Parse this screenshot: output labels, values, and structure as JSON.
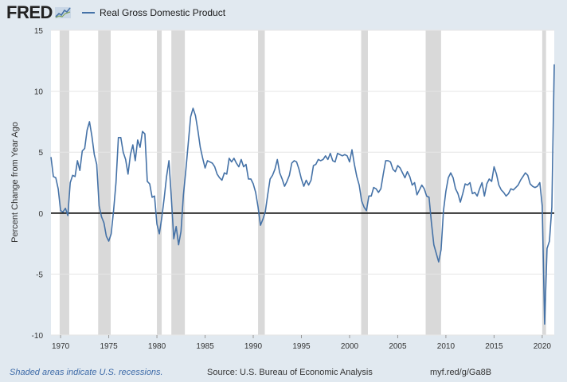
{
  "header": {
    "logo_text": "FRED",
    "legend_label": "Real Gross Domestic Product"
  },
  "colors": {
    "series": "#4572a7",
    "recession": "#d9d9d9",
    "background": "#e1e9f0",
    "plot": "#ffffff",
    "zero_line": "#000000"
  },
  "footer": {
    "note": "Shaded areas indicate U.S. recessions.",
    "source": "Source: U.S. Bureau of Economic Analysis",
    "url": "myf.red/g/Ga8B"
  },
  "chart_data": {
    "type": "line",
    "title": "Real Gross Domestic Product",
    "xlabel": "",
    "ylabel": "Percent Change from Year Ago",
    "xlim": [
      1969.0,
      2021.25
    ],
    "ylim": [
      -10,
      15
    ],
    "yticks": [
      -10,
      -5,
      0,
      5,
      10,
      15
    ],
    "xticks": [
      1970,
      1975,
      1980,
      1985,
      1990,
      1995,
      2000,
      2005,
      2010,
      2015,
      2020
    ],
    "recessions": [
      [
        1969.9,
        1970.9
      ],
      [
        1973.9,
        1975.2
      ],
      [
        1980.0,
        1980.5
      ],
      [
        1981.5,
        1982.9
      ],
      [
        1990.5,
        1991.2
      ],
      [
        2001.2,
        2001.9
      ],
      [
        2007.9,
        2009.5
      ],
      [
        2020.0,
        2020.4
      ]
    ],
    "series": [
      {
        "name": "Real Gross Domestic Product",
        "points": [
          [
            1969.0,
            4.6
          ],
          [
            1969.25,
            3.0
          ],
          [
            1969.5,
            2.9
          ],
          [
            1969.75,
            2.0
          ],
          [
            1970.0,
            0.2
          ],
          [
            1970.25,
            0.1
          ],
          [
            1970.5,
            0.4
          ],
          [
            1970.75,
            -0.2
          ],
          [
            1971.0,
            2.5
          ],
          [
            1971.25,
            3.1
          ],
          [
            1971.5,
            3.0
          ],
          [
            1971.75,
            4.3
          ],
          [
            1972.0,
            3.5
          ],
          [
            1972.25,
            5.1
          ],
          [
            1972.5,
            5.3
          ],
          [
            1972.75,
            6.8
          ],
          [
            1973.0,
            7.5
          ],
          [
            1973.25,
            6.3
          ],
          [
            1973.5,
            4.8
          ],
          [
            1973.75,
            4.0
          ],
          [
            1974.0,
            0.6
          ],
          [
            1974.25,
            -0.3
          ],
          [
            1974.5,
            -0.8
          ],
          [
            1974.75,
            -1.9
          ],
          [
            1975.0,
            -2.3
          ],
          [
            1975.25,
            -1.7
          ],
          [
            1975.5,
            0.2
          ],
          [
            1975.75,
            2.5
          ],
          [
            1976.0,
            6.2
          ],
          [
            1976.25,
            6.2
          ],
          [
            1976.5,
            5.0
          ],
          [
            1976.75,
            4.4
          ],
          [
            1977.0,
            3.2
          ],
          [
            1977.25,
            4.8
          ],
          [
            1977.5,
            5.6
          ],
          [
            1977.75,
            4.3
          ],
          [
            1978.0,
            6.0
          ],
          [
            1978.25,
            5.4
          ],
          [
            1978.5,
            6.7
          ],
          [
            1978.75,
            6.5
          ],
          [
            1979.0,
            2.6
          ],
          [
            1979.25,
            2.4
          ],
          [
            1979.5,
            1.3
          ],
          [
            1979.75,
            1.4
          ],
          [
            1980.0,
            -0.9
          ],
          [
            1980.25,
            -1.7
          ],
          [
            1980.5,
            -0.4
          ],
          [
            1980.75,
            1.2
          ],
          [
            1981.0,
            3.0
          ],
          [
            1981.25,
            4.3
          ],
          [
            1981.5,
            1.2
          ],
          [
            1981.75,
            -2.1
          ],
          [
            1982.0,
            -1.1
          ],
          [
            1982.25,
            -2.6
          ],
          [
            1982.5,
            -1.5
          ],
          [
            1982.75,
            1.5
          ],
          [
            1983.0,
            3.5
          ],
          [
            1983.25,
            5.7
          ],
          [
            1983.5,
            7.9
          ],
          [
            1983.75,
            8.6
          ],
          [
            1984.0,
            8.0
          ],
          [
            1984.25,
            6.8
          ],
          [
            1984.5,
            5.4
          ],
          [
            1984.75,
            4.5
          ],
          [
            1985.0,
            3.7
          ],
          [
            1985.25,
            4.3
          ],
          [
            1985.5,
            4.2
          ],
          [
            1985.75,
            4.1
          ],
          [
            1986.0,
            3.8
          ],
          [
            1986.25,
            3.2
          ],
          [
            1986.5,
            2.9
          ],
          [
            1986.75,
            2.7
          ],
          [
            1987.0,
            3.3
          ],
          [
            1987.25,
            3.2
          ],
          [
            1987.5,
            4.5
          ],
          [
            1987.75,
            4.2
          ],
          [
            1988.0,
            4.5
          ],
          [
            1988.25,
            4.1
          ],
          [
            1988.5,
            3.8
          ],
          [
            1988.75,
            4.4
          ],
          [
            1989.0,
            3.8
          ],
          [
            1989.25,
            4.0
          ],
          [
            1989.5,
            2.8
          ],
          [
            1989.75,
            2.8
          ],
          [
            1990.0,
            2.4
          ],
          [
            1990.25,
            1.7
          ],
          [
            1990.5,
            0.5
          ],
          [
            1990.75,
            -1.0
          ],
          [
            1991.0,
            -0.5
          ],
          [
            1991.25,
            0.1
          ],
          [
            1991.5,
            1.5
          ],
          [
            1991.75,
            2.8
          ],
          [
            1992.0,
            3.1
          ],
          [
            1992.25,
            3.6
          ],
          [
            1992.5,
            4.4
          ],
          [
            1992.75,
            3.3
          ],
          [
            1993.0,
            2.8
          ],
          [
            1993.25,
            2.2
          ],
          [
            1993.5,
            2.6
          ],
          [
            1993.75,
            3.1
          ],
          [
            1994.0,
            4.1
          ],
          [
            1994.25,
            4.3
          ],
          [
            1994.5,
            4.2
          ],
          [
            1994.75,
            3.6
          ],
          [
            1995.0,
            2.8
          ],
          [
            1995.25,
            2.2
          ],
          [
            1995.5,
            2.7
          ],
          [
            1995.75,
            2.3
          ],
          [
            1996.0,
            2.7
          ],
          [
            1996.25,
            3.9
          ],
          [
            1996.5,
            4.0
          ],
          [
            1996.75,
            4.4
          ],
          [
            1997.0,
            4.3
          ],
          [
            1997.25,
            4.4
          ],
          [
            1997.5,
            4.7
          ],
          [
            1997.75,
            4.4
          ],
          [
            1998.0,
            4.9
          ],
          [
            1998.25,
            4.3
          ],
          [
            1998.5,
            4.2
          ],
          [
            1998.75,
            4.9
          ],
          [
            1999.0,
            4.8
          ],
          [
            1999.25,
            4.7
          ],
          [
            1999.5,
            4.8
          ],
          [
            1999.75,
            4.7
          ],
          [
            2000.0,
            4.2
          ],
          [
            2000.25,
            5.2
          ],
          [
            2000.5,
            4.0
          ],
          [
            2000.75,
            3.0
          ],
          [
            2001.0,
            2.3
          ],
          [
            2001.25,
            1.0
          ],
          [
            2001.5,
            0.5
          ],
          [
            2001.75,
            0.2
          ],
          [
            2002.0,
            1.4
          ],
          [
            2002.25,
            1.4
          ],
          [
            2002.5,
            2.1
          ],
          [
            2002.75,
            2.0
          ],
          [
            2003.0,
            1.7
          ],
          [
            2003.25,
            2.0
          ],
          [
            2003.5,
            3.2
          ],
          [
            2003.75,
            4.3
          ],
          [
            2004.0,
            4.3
          ],
          [
            2004.25,
            4.2
          ],
          [
            2004.5,
            3.6
          ],
          [
            2004.75,
            3.4
          ],
          [
            2005.0,
            3.9
          ],
          [
            2005.25,
            3.7
          ],
          [
            2005.5,
            3.3
          ],
          [
            2005.75,
            2.9
          ],
          [
            2006.0,
            3.4
          ],
          [
            2006.25,
            3.0
          ],
          [
            2006.5,
            2.3
          ],
          [
            2006.75,
            2.5
          ],
          [
            2007.0,
            1.5
          ],
          [
            2007.25,
            1.9
          ],
          [
            2007.5,
            2.3
          ],
          [
            2007.75,
            2.0
          ],
          [
            2008.0,
            1.4
          ],
          [
            2008.25,
            1.3
          ],
          [
            2008.5,
            -0.8
          ],
          [
            2008.75,
            -2.6
          ],
          [
            2009.0,
            -3.3
          ],
          [
            2009.25,
            -4.0
          ],
          [
            2009.5,
            -3.0
          ],
          [
            2009.75,
            0.2
          ],
          [
            2010.0,
            1.8
          ],
          [
            2010.25,
            2.9
          ],
          [
            2010.5,
            3.3
          ],
          [
            2010.75,
            2.9
          ],
          [
            2011.0,
            2.0
          ],
          [
            2011.25,
            1.6
          ],
          [
            2011.5,
            0.9
          ],
          [
            2011.75,
            1.6
          ],
          [
            2012.0,
            2.4
          ],
          [
            2012.25,
            2.3
          ],
          [
            2012.5,
            2.5
          ],
          [
            2012.75,
            1.6
          ],
          [
            2013.0,
            1.7
          ],
          [
            2013.25,
            1.4
          ],
          [
            2013.5,
            2.0
          ],
          [
            2013.75,
            2.5
          ],
          [
            2014.0,
            1.4
          ],
          [
            2014.25,
            2.4
          ],
          [
            2014.5,
            2.8
          ],
          [
            2014.75,
            2.6
          ],
          [
            2015.0,
            3.8
          ],
          [
            2015.25,
            3.2
          ],
          [
            2015.5,
            2.3
          ],
          [
            2015.75,
            1.9
          ],
          [
            2016.0,
            1.7
          ],
          [
            2016.25,
            1.4
          ],
          [
            2016.5,
            1.6
          ],
          [
            2016.75,
            2.0
          ],
          [
            2017.0,
            1.9
          ],
          [
            2017.25,
            2.1
          ],
          [
            2017.5,
            2.3
          ],
          [
            2017.75,
            2.7
          ],
          [
            2018.0,
            3.0
          ],
          [
            2018.25,
            3.3
          ],
          [
            2018.5,
            3.1
          ],
          [
            2018.75,
            2.4
          ],
          [
            2019.0,
            2.2
          ],
          [
            2019.25,
            2.1
          ],
          [
            2019.5,
            2.2
          ],
          [
            2019.75,
            2.5
          ],
          [
            2020.0,
            0.6
          ],
          [
            2020.25,
            -9.1
          ],
          [
            2020.5,
            -2.9
          ],
          [
            2020.75,
            -2.3
          ],
          [
            2021.0,
            0.5
          ],
          [
            2021.25,
            12.2
          ]
        ]
      }
    ]
  }
}
